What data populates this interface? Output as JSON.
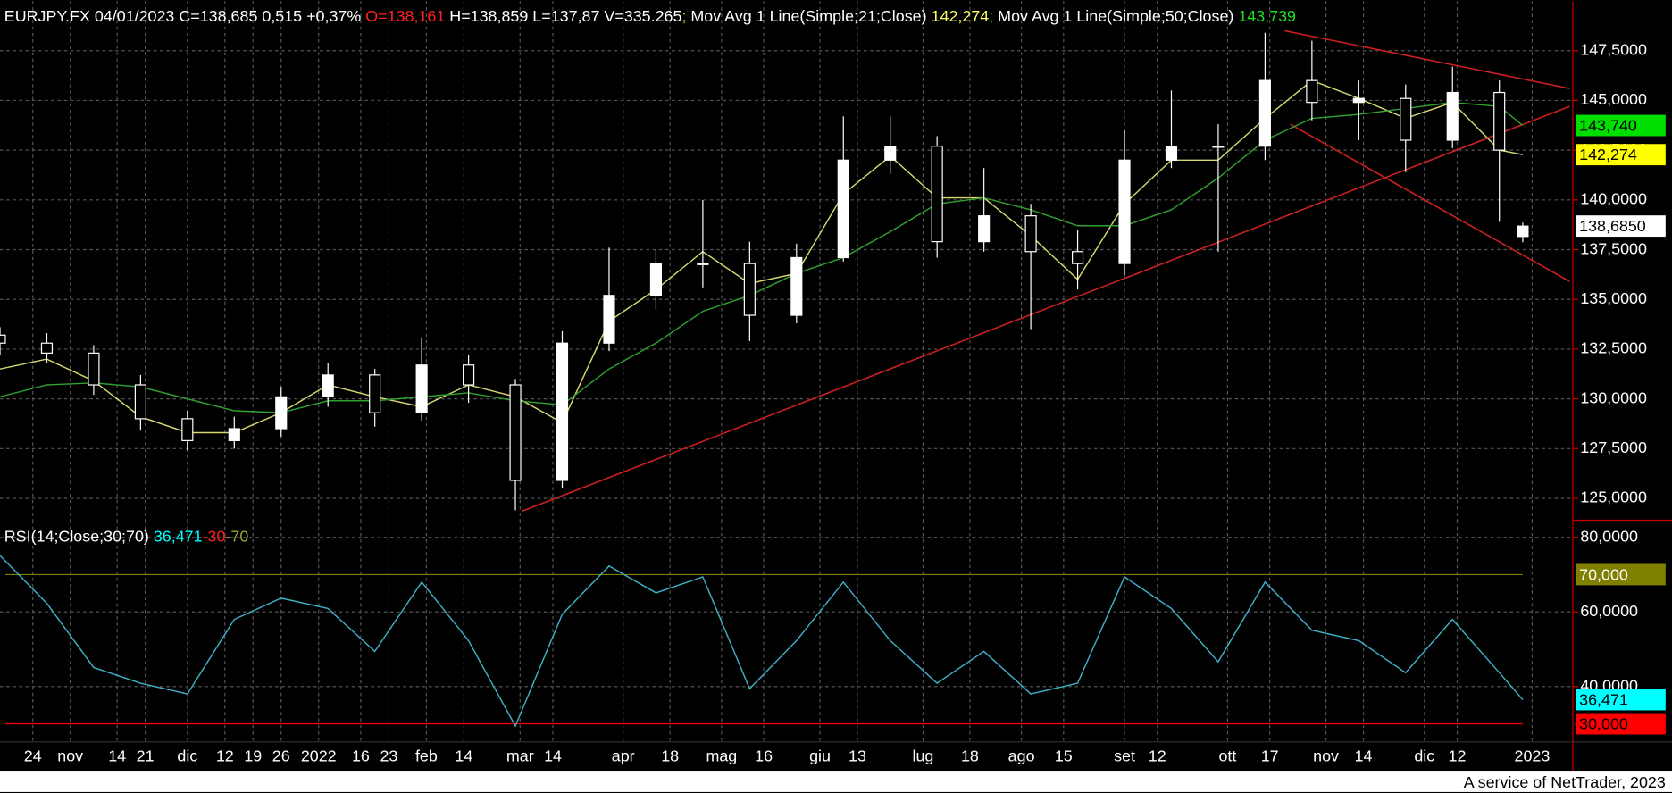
{
  "chart_data": [
    {
      "type": "candlestick",
      "legend": [
        {
          "text": "EURJPY.FX 04/01/2023 C=138,685 0,515 +0,37% ",
          "color": "#ffffff"
        },
        {
          "text": "O=138,161",
          "color": "#ff2020"
        },
        {
          "text": " H=138,859 L=137,87 V=335.265",
          "color": "#ffffff"
        },
        {
          "text": "; ",
          "color": "#c8c800"
        },
        {
          "text": "Mov Avg 1 Line(Simple;21;Close) ",
          "color": "#ffffff"
        },
        {
          "text": "142,274",
          "color": "#ffff60"
        },
        {
          "text": "; ",
          "color": "#00c000"
        },
        {
          "text": "Mov Avg 1 Line(Simple;50;Close) ",
          "color": "#ffffff"
        },
        {
          "text": "143,739",
          "color": "#20e020"
        }
      ],
      "x": [
        0,
        10,
        20,
        30,
        40,
        50,
        60,
        70,
        80,
        90,
        100,
        110,
        120,
        130,
        140,
        150,
        160,
        170,
        180,
        190,
        200,
        210,
        220,
        230,
        240,
        250,
        260,
        270,
        280,
        290,
        300,
        310,
        320,
        325
      ],
      "open": [
        133.2,
        132.8,
        132.3,
        130.7,
        129.0,
        127.9,
        128.5,
        130.1,
        131.2,
        129.3,
        131.7,
        130.7,
        125.9,
        132.8,
        135.2,
        136.8,
        136.8,
        134.2,
        137.1,
        142.0,
        142.7,
        137.9,
        139.2,
        137.4,
        136.8,
        142.0,
        142.7,
        142.7,
        146.0,
        144.9,
        145.1,
        143.0,
        145.4,
        138.161
      ],
      "high": [
        133.6,
        133.3,
        132.7,
        131.2,
        129.4,
        129.1,
        130.6,
        131.8,
        131.5,
        133.1,
        132.2,
        131.0,
        133.4,
        137.6,
        137.5,
        140.0,
        137.9,
        137.8,
        144.2,
        144.2,
        143.2,
        141.6,
        139.8,
        138.5,
        143.5,
        145.5,
        143.8,
        148.4,
        148.0,
        146.0,
        145.8,
        146.7,
        146.0,
        138.859
      ],
      "low": [
        132.2,
        131.8,
        130.2,
        128.4,
        127.4,
        127.5,
        128.1,
        129.6,
        128.6,
        128.9,
        129.8,
        124.4,
        125.5,
        132.4,
        134.5,
        135.6,
        132.9,
        133.8,
        136.9,
        141.3,
        137.1,
        137.4,
        133.5,
        135.5,
        136.2,
        141.6,
        137.4,
        142.0,
        144.0,
        143.0,
        141.4,
        142.6,
        138.9,
        137.87
      ],
      "close": [
        132.8,
        132.3,
        130.7,
        129.0,
        127.9,
        128.5,
        130.1,
        131.2,
        129.3,
        131.7,
        130.7,
        125.9,
        132.8,
        135.2,
        136.8,
        136.8,
        134.2,
        137.1,
        142.0,
        142.7,
        137.9,
        139.2,
        137.4,
        136.8,
        142.0,
        142.7,
        142.7,
        146.0,
        144.9,
        145.1,
        143.0,
        145.4,
        142.5,
        138.685
      ],
      "color": "#ffffff",
      "series": [
        {
          "name": "Mov Avg 1 Line(Simple;21;Close)",
          "color": "#d8d870",
          "values": [
            131.5,
            132.0,
            130.9,
            129.1,
            128.3,
            128.3,
            129.3,
            130.7,
            130.1,
            129.6,
            130.7,
            130.1,
            128.8,
            133.9,
            135.5,
            137.4,
            135.8,
            136.3,
            140.3,
            142.2,
            140.1,
            140.1,
            138.2,
            136.0,
            139.8,
            142.0,
            142.0,
            144.1,
            146.0,
            145.1,
            144.1,
            144.9,
            142.5,
            142.274
          ]
        },
        {
          "name": "Mov Avg 1 Line(Simple;50;Close)",
          "color": "#30a030",
          "values": [
            130.1,
            130.7,
            130.8,
            130.6,
            130.0,
            129.4,
            129.3,
            129.9,
            129.9,
            130.1,
            130.3,
            129.9,
            129.7,
            131.5,
            132.8,
            134.4,
            135.2,
            136.3,
            137.1,
            138.4,
            139.8,
            140.1,
            139.5,
            138.7,
            138.7,
            139.5,
            141.1,
            143.0,
            144.1,
            144.3,
            144.6,
            144.9,
            144.7,
            143.739
          ]
        }
      ],
      "trendlines": [
        {
          "x": [
            111.5,
            335
          ],
          "y": [
            124.36,
            144.7
          ],
          "color": "#d02020"
        },
        {
          "x": [
            274.2,
            335
          ],
          "y": [
            148.5,
            145.6
          ],
          "color": "#d02020"
        },
        {
          "x": [
            275.4,
            335
          ],
          "y": [
            143.8,
            135.9
          ],
          "color": "#d02020"
        }
      ],
      "price_labels": [
        {
          "value": 143.74,
          "label": "143,740",
          "color": "#00e000"
        },
        {
          "value": 142.274,
          "label": "142,274",
          "color": "#ffff00"
        },
        {
          "value": 138.685,
          "label": "138,6850",
          "color": "#ffffff"
        }
      ],
      "xlim": [
        0,
        335
      ],
      "ylim": [
        123.9,
        150
      ],
      "yticks": [
        {
          "value": 125,
          "label": "125,0000"
        },
        {
          "value": 127.5,
          "label": "127,5000"
        },
        {
          "value": 130,
          "label": "130,0000"
        },
        {
          "value": 132.5,
          "label": "132,5000"
        },
        {
          "value": 135,
          "label": "135,0000"
        },
        {
          "value": 137.5,
          "label": "137,5000"
        },
        {
          "value": 140,
          "label": "140,0000"
        },
        {
          "value": 142.5,
          "label": "142,5000"
        },
        {
          "value": 145,
          "label": "145,0000"
        },
        {
          "value": 147.5,
          "label": "147,5000"
        }
      ],
      "xticks": [
        {
          "value": 7,
          "label": "24"
        },
        {
          "value": 15,
          "label": "nov"
        },
        {
          "value": 25,
          "label": "14"
        },
        {
          "value": 31,
          "label": "21"
        },
        {
          "value": 40,
          "label": "dic"
        },
        {
          "value": 48,
          "label": "12"
        },
        {
          "value": 54,
          "label": "19"
        },
        {
          "value": 60,
          "label": "26"
        },
        {
          "value": 68,
          "label": "2022"
        },
        {
          "value": 77,
          "label": "16"
        },
        {
          "value": 83,
          "label": "23"
        },
        {
          "value": 91,
          "label": "feb"
        },
        {
          "value": 99,
          "label": "14"
        },
        {
          "value": 111,
          "label": "mar"
        },
        {
          "value": 118,
          "label": "14"
        },
        {
          "value": 133,
          "label": "apr"
        },
        {
          "value": 143,
          "label": "18"
        },
        {
          "value": 154,
          "label": "mag"
        },
        {
          "value": 163,
          "label": "16"
        },
        {
          "value": 175,
          "label": "giu"
        },
        {
          "value": 183,
          "label": "13"
        },
        {
          "value": 197,
          "label": "lug"
        },
        {
          "value": 207,
          "label": "18"
        },
        {
          "value": 218,
          "label": "ago"
        },
        {
          "value": 227,
          "label": "15"
        },
        {
          "value": 240,
          "label": "set"
        },
        {
          "value": 247,
          "label": "12"
        },
        {
          "value": 262,
          "label": "ott"
        },
        {
          "value": 271,
          "label": "17"
        },
        {
          "value": 283,
          "label": "nov"
        },
        {
          "value": 291,
          "label": "14"
        },
        {
          "value": 304,
          "label": "dic"
        },
        {
          "value": 311,
          "label": "12"
        },
        {
          "value": 327,
          "label": "2023"
        }
      ],
      "grid": true
    },
    {
      "type": "line",
      "legend": [
        {
          "text": "RSI(14;Close;30;70) ",
          "color": "#ffffff"
        },
        {
          "text": "36,471",
          "color": "#00ffff"
        },
        {
          "text": "-30",
          "color": "#ff2020"
        },
        {
          "text": "-70",
          "color": "#a0a040"
        }
      ],
      "x": [
        0,
        10,
        20,
        30,
        40,
        50,
        60,
        70,
        80,
        90,
        100,
        110,
        120,
        130,
        140,
        150,
        160,
        170,
        180,
        190,
        200,
        210,
        220,
        230,
        240,
        250,
        260,
        270,
        280,
        290,
        300,
        310,
        320,
        325
      ],
      "series": [
        {
          "name": "RSI(14;Close;30;70)",
          "color": "#40b0c8",
          "values": [
            75.1,
            62.3,
            45.1,
            40.9,
            38.0,
            58.0,
            63.7,
            60.9,
            49.4,
            68.0,
            52.3,
            29.4,
            59.4,
            72.3,
            65.1,
            69.4,
            39.4,
            52.3,
            68.0,
            52.3,
            40.9,
            49.4,
            38.0,
            40.9,
            69.4,
            60.9,
            46.6,
            68.0,
            55.1,
            52.3,
            43.7,
            58.0,
            43.7,
            36.471
          ]
        }
      ],
      "levels": [
        {
          "value": 70,
          "label": "70,000",
          "color": "#808000"
        },
        {
          "value": 30,
          "label": "30,000",
          "color": "#ff0000"
        }
      ],
      "price_labels": [
        {
          "value": 36.471,
          "label": "36,471",
          "color": "#00ffff"
        }
      ],
      "xlim": [
        0,
        335
      ],
      "ylim": [
        25.14,
        84.6
      ],
      "yticks": [
        {
          "value": 40,
          "label": "40,0000"
        },
        {
          "value": 60,
          "label": "60,0000"
        },
        {
          "value": 80,
          "label": "80,0000"
        }
      ],
      "grid": true
    }
  ],
  "footer": "A service of NetTrader, 2023"
}
